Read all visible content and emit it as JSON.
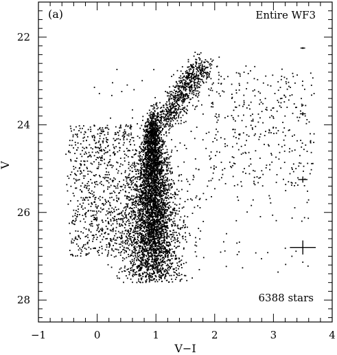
{
  "chart_data": {
    "type": "scatter",
    "panel_label": "(a)",
    "field_label": "Entire WF3",
    "count_label": "6388 stars",
    "xlabel": "V−I",
    "ylabel": "V",
    "xlim": [
      -1,
      4
    ],
    "ylim": [
      28.5,
      21.2
    ],
    "y_inverted": true,
    "x_ticks": [
      "−1",
      "0",
      "1",
      "2",
      "3",
      "4"
    ],
    "x_tick_values": [
      -1,
      0,
      1,
      2,
      3,
      4
    ],
    "y_ticks": [
      "22",
      "24",
      "26",
      "28"
    ],
    "y_tick_values": [
      22,
      24,
      26,
      28
    ],
    "n_stars": 6388,
    "error_bars": [
      {
        "x": 3.5,
        "y": 22.25,
        "xerr": 0.04,
        "yerr": 0.02
      },
      {
        "x": 3.5,
        "y": 23.75,
        "xerr": 0.05,
        "yerr": 0.04
      },
      {
        "x": 3.5,
        "y": 25.25,
        "xerr": 0.08,
        "yerr": 0.07
      },
      {
        "x": 3.5,
        "y": 26.8,
        "xerr": 0.22,
        "yerr": 0.16
      }
    ],
    "distribution": {
      "main_sequence_color": 0.95,
      "main_sequence_v_range": [
        24.0,
        27.5
      ],
      "turnoff_v": 24.0,
      "giant_branch_v_range": [
        22.6,
        24.0
      ],
      "giant_branch_color_range": [
        1.3,
        2.0
      ],
      "blue_plume_color_range": [
        -0.5,
        0.6
      ],
      "red_tail_color_range": [
        2.0,
        3.8
      ]
    }
  }
}
